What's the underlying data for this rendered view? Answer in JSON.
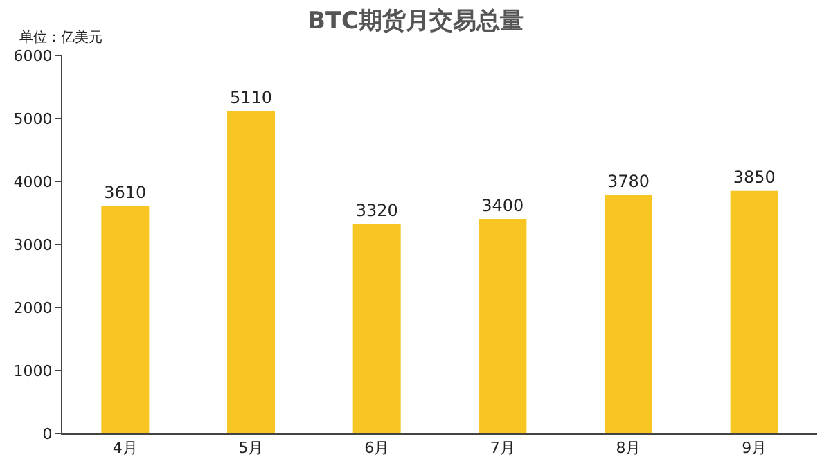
{
  "chart_data": {
    "type": "bar",
    "title": "BTC期货月交易总量",
    "annotations": [
      "单位：亿美元"
    ],
    "categories": [
      "4月",
      "5月",
      "6月",
      "7月",
      "8月",
      "9月"
    ],
    "values": [
      3610,
      5110,
      3320,
      3400,
      3780,
      3850
    ],
    "color": "#f7c623",
    "ylim": [
      0,
      6000
    ],
    "yticks": [
      0,
      1000,
      2000,
      3000,
      4000,
      5000,
      6000
    ],
    "data_labels": true
  }
}
